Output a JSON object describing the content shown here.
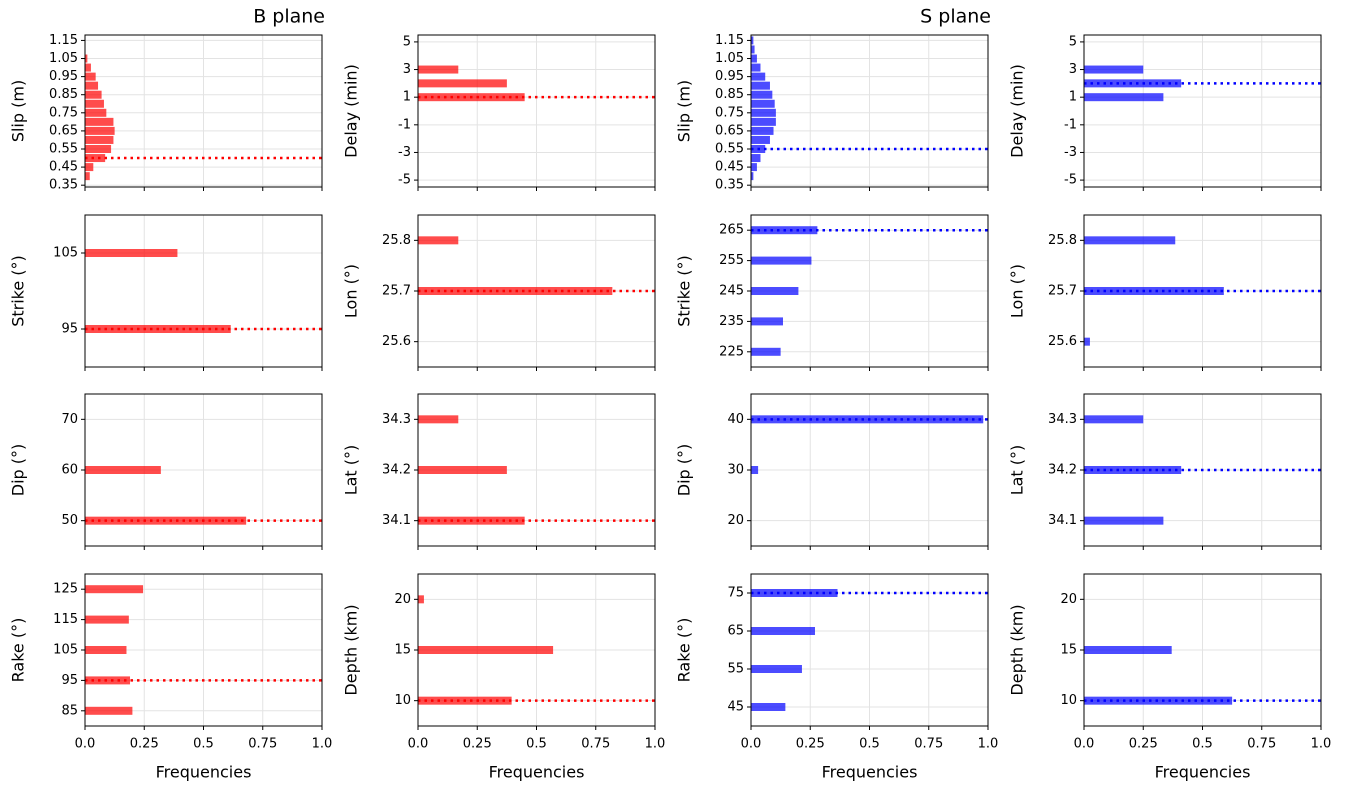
{
  "chart_data": [
    {
      "type": "barh",
      "title": "B plane",
      "ylabel": "Slip (m)",
      "color": "#ff0000",
      "grid": true,
      "categories": [
        0.4,
        0.45,
        0.5,
        0.55,
        0.6,
        0.65,
        0.7,
        0.75,
        0.8,
        0.85,
        0.9,
        0.95,
        1.0,
        1.05
      ],
      "values": [
        0.02,
        0.035,
        0.085,
        0.11,
        0.12,
        0.125,
        0.12,
        0.09,
        0.08,
        0.07,
        0.055,
        0.045,
        0.025,
        0.01
      ],
      "best": 0.5,
      "ylim": [
        0.34,
        1.18
      ],
      "yticks": [
        0.35,
        0.45,
        0.55,
        0.65,
        0.75,
        0.85,
        0.95,
        1.05,
        1.15
      ],
      "xlim": [
        0,
        1
      ],
      "xticks": [
        0,
        0.25,
        0.5,
        0.75,
        1
      ]
    },
    {
      "type": "barh",
      "ylabel": "Delay (min)",
      "color": "#ff0000",
      "grid": true,
      "categories": [
        1,
        2,
        3
      ],
      "values": [
        0.45,
        0.375,
        0.17
      ],
      "best": 1,
      "ylim": [
        -5.5,
        5.5
      ],
      "yticks": [
        -5,
        -3,
        -1,
        1,
        3,
        5
      ],
      "xlim": [
        0,
        1
      ],
      "xticks": [
        0,
        0.25,
        0.5,
        0.75,
        1
      ]
    },
    {
      "type": "barh",
      "title": "S plane",
      "ylabel": "Slip (m)",
      "color": "#0000ff",
      "grid": true,
      "categories": [
        0.4,
        0.45,
        0.5,
        0.55,
        0.6,
        0.65,
        0.7,
        0.75,
        0.8,
        0.85,
        0.9,
        0.95,
        1.0,
        1.05,
        1.1,
        1.15
      ],
      "values": [
        0.01,
        0.025,
        0.04,
        0.06,
        0.08,
        0.095,
        0.105,
        0.105,
        0.1,
        0.09,
        0.08,
        0.06,
        0.04,
        0.025,
        0.015,
        0.01
      ],
      "best": 0.55,
      "ylim": [
        0.34,
        1.18
      ],
      "yticks": [
        0.35,
        0.45,
        0.55,
        0.65,
        0.75,
        0.85,
        0.95,
        1.05,
        1.15
      ],
      "xlim": [
        0,
        1
      ],
      "xticks": [
        0,
        0.25,
        0.5,
        0.75,
        1
      ]
    },
    {
      "type": "barh",
      "ylabel": "Delay (min)",
      "color": "#0000ff",
      "grid": true,
      "categories": [
        1,
        2,
        3
      ],
      "values": [
        0.335,
        0.41,
        0.25
      ],
      "best": 2,
      "ylim": [
        -5.5,
        5.5
      ],
      "yticks": [
        -5,
        -3,
        -1,
        1,
        3,
        5
      ],
      "xlim": [
        0,
        1
      ],
      "xticks": [
        0,
        0.25,
        0.5,
        0.75,
        1
      ]
    },
    {
      "type": "barh",
      "ylabel": "Strike (°)",
      "color": "#ff0000",
      "grid": true,
      "categories": [
        95,
        105
      ],
      "values": [
        0.615,
        0.39
      ],
      "best": 95,
      "ylim": [
        90,
        110
      ],
      "yticks": [
        95,
        105
      ],
      "xlim": [
        0,
        1
      ],
      "xticks": [
        0,
        0.25,
        0.5,
        0.75,
        1
      ]
    },
    {
      "type": "barh",
      "ylabel": "Lon (°)",
      "color": "#ff0000",
      "grid": true,
      "categories": [
        25.7,
        25.8
      ],
      "values": [
        0.82,
        0.17
      ],
      "best": 25.7,
      "ylim": [
        25.55,
        25.85
      ],
      "yticks": [
        25.6,
        25.7,
        25.8
      ],
      "xlim": [
        0,
        1
      ],
      "xticks": [
        0,
        0.25,
        0.5,
        0.75,
        1
      ]
    },
    {
      "type": "barh",
      "ylabel": "Strike (°)",
      "color": "#0000ff",
      "grid": true,
      "categories": [
        225,
        235,
        245,
        255,
        265
      ],
      "values": [
        0.125,
        0.135,
        0.2,
        0.255,
        0.28
      ],
      "best": 265,
      "ylim": [
        220,
        270
      ],
      "yticks": [
        225,
        235,
        245,
        255,
        265
      ],
      "xlim": [
        0,
        1
      ],
      "xticks": [
        0,
        0.25,
        0.5,
        0.75,
        1
      ]
    },
    {
      "type": "barh",
      "ylabel": "Lon (°)",
      "color": "#0000ff",
      "grid": true,
      "categories": [
        25.6,
        25.7,
        25.8
      ],
      "values": [
        0.025,
        0.59,
        0.385
      ],
      "best": 25.7,
      "ylim": [
        25.55,
        25.85
      ],
      "yticks": [
        25.6,
        25.7,
        25.8
      ],
      "xlim": [
        0,
        1
      ],
      "xticks": [
        0,
        0.25,
        0.5,
        0.75,
        1
      ]
    },
    {
      "type": "barh",
      "ylabel": "Dip (°)",
      "color": "#ff0000",
      "grid": true,
      "categories": [
        50,
        60
      ],
      "values": [
        0.68,
        0.32
      ],
      "best": 50,
      "ylim": [
        45,
        75
      ],
      "yticks": [
        50,
        60,
        70
      ],
      "xlim": [
        0,
        1
      ],
      "xticks": [
        0,
        0.25,
        0.5,
        0.75,
        1
      ]
    },
    {
      "type": "barh",
      "ylabel": "Lat (°)",
      "color": "#ff0000",
      "grid": true,
      "categories": [
        34.1,
        34.2,
        34.3
      ],
      "values": [
        0.45,
        0.375,
        0.17
      ],
      "best": 34.1,
      "ylim": [
        34.05,
        34.35
      ],
      "yticks": [
        34.1,
        34.2,
        34.3
      ],
      "xlim": [
        0,
        1
      ],
      "xticks": [
        0,
        0.25,
        0.5,
        0.75,
        1
      ]
    },
    {
      "type": "barh",
      "ylabel": "Dip (°)",
      "color": "#0000ff",
      "grid": true,
      "categories": [
        30,
        40
      ],
      "values": [
        0.03,
        0.98
      ],
      "best": 40,
      "ylim": [
        15,
        45
      ],
      "yticks": [
        20,
        30,
        40
      ],
      "xlim": [
        0,
        1
      ],
      "xticks": [
        0,
        0.25,
        0.5,
        0.75,
        1
      ]
    },
    {
      "type": "barh",
      "ylabel": "Lat (°)",
      "color": "#0000ff",
      "grid": true,
      "categories": [
        34.1,
        34.2,
        34.3
      ],
      "values": [
        0.335,
        0.41,
        0.25
      ],
      "best": 34.2,
      "ylim": [
        34.05,
        34.35
      ],
      "yticks": [
        34.1,
        34.2,
        34.3
      ],
      "xlim": [
        0,
        1
      ],
      "xticks": [
        0,
        0.25,
        0.5,
        0.75,
        1
      ]
    },
    {
      "type": "barh",
      "ylabel": "Rake (°)",
      "xlabel": "Frequencies",
      "color": "#ff0000",
      "grid": true,
      "categories": [
        85,
        95,
        105,
        115,
        125
      ],
      "values": [
        0.2,
        0.19,
        0.175,
        0.185,
        0.245
      ],
      "best": 95,
      "ylim": [
        80,
        130
      ],
      "yticks": [
        85,
        95,
        105,
        115,
        125
      ],
      "xlim": [
        0,
        1
      ],
      "xticks": [
        {
          "value": 0,
          "label": "0.0"
        },
        0.25,
        0.5,
        0.75,
        {
          "value": 1,
          "label": "1.0"
        }
      ]
    },
    {
      "type": "barh",
      "ylabel": "Depth (km)",
      "xlabel": "Frequencies",
      "color": "#ff0000",
      "grid": true,
      "categories": [
        10,
        15,
        20
      ],
      "values": [
        0.395,
        0.57,
        0.025
      ],
      "best": 10,
      "ylim": [
        7.5,
        22.5
      ],
      "yticks": [
        10,
        15,
        20
      ],
      "xlim": [
        0,
        1
      ],
      "xticks": [
        {
          "value": 0,
          "label": "0.0"
        },
        0.25,
        0.5,
        0.75,
        {
          "value": 1,
          "label": "1.0"
        }
      ]
    },
    {
      "type": "barh",
      "ylabel": "Rake (°)",
      "xlabel": "Frequencies",
      "color": "#0000ff",
      "grid": true,
      "categories": [
        45,
        55,
        65,
        75
      ],
      "values": [
        0.145,
        0.215,
        0.27,
        0.365
      ],
      "best": 75,
      "ylim": [
        40,
        80
      ],
      "yticks": [
        45,
        55,
        65,
        75
      ],
      "xlim": [
        0,
        1
      ],
      "xticks": [
        {
          "value": 0,
          "label": "0.0"
        },
        0.25,
        0.5,
        0.75,
        {
          "value": 1,
          "label": "1.0"
        }
      ]
    },
    {
      "type": "barh",
      "ylabel": "Depth (km)",
      "xlabel": "Frequencies",
      "color": "#0000ff",
      "grid": true,
      "categories": [
        10,
        15
      ],
      "values": [
        0.625,
        0.37
      ],
      "best": 10,
      "ylim": [
        7.5,
        22.5
      ],
      "yticks": [
        10,
        15,
        20
      ],
      "xlim": [
        0,
        1
      ],
      "xticks": [
        {
          "value": 0,
          "label": "0.0"
        },
        0.25,
        0.5,
        0.75,
        {
          "value": 1,
          "label": "1.0"
        }
      ]
    }
  ]
}
